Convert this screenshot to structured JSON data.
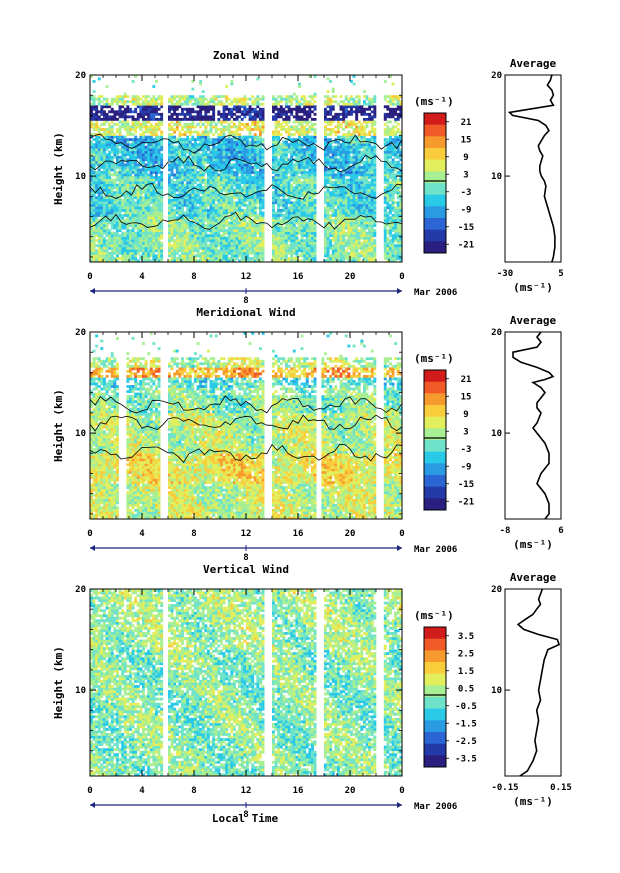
{
  "figure": {
    "date_label": "Mar 2006",
    "xlabel": "Local Time",
    "day_label": "8",
    "ylabel": "Height (km)",
    "unit_label": "(ms⁻¹)"
  },
  "colors": {
    "colormap": [
      "#2a1f7e",
      "#243aa8",
      "#2c66d4",
      "#2a9be3",
      "#29c9e8",
      "#6fe3c9",
      "#a8ef93",
      "#e2ee5b",
      "#f9cc3c",
      "#f79a2e",
      "#ef5a27",
      "#d21b1b"
    ],
    "contour": "#000000",
    "axis": "#000000",
    "date_axis": "#1a237e"
  },
  "chart_data": [
    {
      "type": "heatmap",
      "name": "zonal",
      "title": "Zonal Wind",
      "x_ticks": [
        "0",
        "4",
        "8",
        "12",
        "16",
        "20",
        "0"
      ],
      "y_ticks": [
        "20",
        "10"
      ],
      "xlim": [
        0,
        24
      ],
      "ylim": [
        1.5,
        20
      ],
      "colorbar_ticks": [
        "21",
        "15",
        "9",
        "3",
        "-3",
        "-9",
        "-15",
        "-21"
      ],
      "colorbar_range": [
        -24,
        24
      ],
      "gaps_hours": [
        5.8,
        13.7,
        17.7,
        22.3
      ],
      "profile_ranges": [
        {
          "y0": 1.5,
          "y1": 6,
          "value": 0
        },
        {
          "y0": 6,
          "y1": 10,
          "value": -3
        },
        {
          "y0": 10,
          "y1": 14,
          "value": -6
        },
        {
          "y0": 14,
          "y1": 15.5,
          "value": 6
        },
        {
          "y0": 15.5,
          "y1": 16.8,
          "value": -21
        },
        {
          "y0": 16.8,
          "y1": 18,
          "value": 3
        }
      ],
      "average": {
        "title": "Average",
        "xlabel": "(ms⁻¹)",
        "x_ticks": [
          "-30",
          "5"
        ],
        "xlim": [
          -30,
          7
        ],
        "y_ticks": [
          "20",
          "10"
        ],
        "height_km": [
          1.5,
          2,
          3,
          4,
          5,
          6,
          7,
          8,
          9,
          9.5,
          10,
          10.5,
          11,
          11.5,
          12,
          12.5,
          13,
          13.5,
          14,
          14.5,
          15,
          15.5,
          16,
          16.3,
          16.6,
          17,
          17.5,
          18,
          18.5,
          19,
          19.5,
          20
        ],
        "values": [
          1,
          2,
          3,
          3,
          2,
          0,
          -2,
          -4,
          -3,
          -4,
          -6,
          -7,
          -7,
          -6,
          -5,
          -7,
          -8,
          -6,
          -4,
          -1,
          -3,
          -8,
          -25,
          -27,
          -15,
          2,
          0,
          2,
          1,
          -2,
          0,
          1
        ]
      }
    },
    {
      "type": "heatmap",
      "name": "meridional",
      "title": "Meridional Wind",
      "x_ticks": [
        "0",
        "4",
        "8",
        "12",
        "16",
        "20",
        "0"
      ],
      "y_ticks": [
        "20",
        "10"
      ],
      "xlim": [
        0,
        24
      ],
      "ylim": [
        1.5,
        20
      ],
      "colorbar_ticks": [
        "21",
        "15",
        "9",
        "3",
        "-3",
        "-9",
        "-15",
        "-21"
      ],
      "colorbar_range": [
        -24,
        24
      ],
      "gaps_hours": [
        2.5,
        5.7,
        13.7,
        17.6,
        22.3
      ],
      "profile_ranges": [
        {
          "y0": 1.5,
          "y1": 5,
          "value": 4
        },
        {
          "y0": 5,
          "y1": 8,
          "value": 7
        },
        {
          "y0": 8,
          "y1": 12,
          "value": 3
        },
        {
          "y0": 12,
          "y1": 14.5,
          "value": 0
        },
        {
          "y0": 14.5,
          "y1": 15.5,
          "value": -3
        },
        {
          "y0": 15.5,
          "y1": 16.5,
          "value": 12
        },
        {
          "y0": 16.5,
          "y1": 17.5,
          "value": 3
        }
      ],
      "average": {
        "title": "Average",
        "xlabel": "(ms⁻¹)",
        "x_ticks": [
          "-8",
          "6"
        ],
        "xlim": [
          -8,
          6
        ],
        "y_ticks": [
          "20",
          "10"
        ],
        "height_km": [
          1.5,
          2,
          3,
          4,
          5,
          6,
          7,
          8,
          9,
          10,
          10.5,
          11,
          12,
          12.5,
          13,
          13.5,
          14,
          14.5,
          15,
          15.3,
          15.6,
          16,
          16.5,
          17,
          17.5,
          18,
          18.5,
          19,
          19.5,
          20
        ],
        "values": [
          2,
          3,
          3,
          2,
          0,
          1,
          3,
          3,
          2,
          0,
          -1,
          0,
          1,
          0,
          0,
          1,
          2,
          1,
          -1,
          2,
          4,
          3,
          0,
          -4,
          -6,
          -6,
          0,
          1,
          0,
          1
        ]
      }
    },
    {
      "type": "heatmap",
      "name": "vertical",
      "title": "Vertical Wind",
      "x_ticks": [
        "0",
        "4",
        "8",
        "12",
        "16",
        "20",
        "0"
      ],
      "y_ticks": [
        "20",
        "10"
      ],
      "xlim": [
        0,
        24
      ],
      "ylim": [
        1.5,
        20
      ],
      "colorbar_ticks": [
        "3.5",
        "2.5",
        "1.5",
        "0.5",
        "-0.5",
        "-1.5",
        "-2.5",
        "-3.5"
      ],
      "colorbar_range": [
        -4,
        4
      ],
      "gaps_hours": [
        5.8,
        13.7,
        17.7,
        22.3
      ],
      "profile_ranges": [
        {
          "y0": 1.5,
          "y1": 14,
          "value": 0
        },
        {
          "y0": 14,
          "y1": 20,
          "value": 0.3
        }
      ],
      "average": {
        "title": "Average",
        "xlabel": "(ms⁻¹)",
        "x_ticks": [
          "-0.15",
          "0.15"
        ],
        "xlim": [
          -0.15,
          0.15
        ],
        "y_ticks": [
          "20",
          "10"
        ],
        "height_km": [
          1.5,
          2,
          3,
          4,
          5,
          6,
          7,
          8,
          9,
          10,
          11,
          12,
          13,
          14,
          14.5,
          15,
          15.5,
          16,
          16.5,
          17,
          17.5,
          18,
          18.5,
          19,
          19.5,
          20
        ],
        "values": [
          -0.07,
          -0.03,
          0,
          0.02,
          0.01,
          0.02,
          0.03,
          0.02,
          0.04,
          0.03,
          0.04,
          0.05,
          0.06,
          0.08,
          0.14,
          0.13,
          0.03,
          -0.05,
          -0.08,
          -0.04,
          0.0,
          0.02,
          0.04,
          0.03,
          0.04,
          0.05
        ]
      }
    }
  ]
}
